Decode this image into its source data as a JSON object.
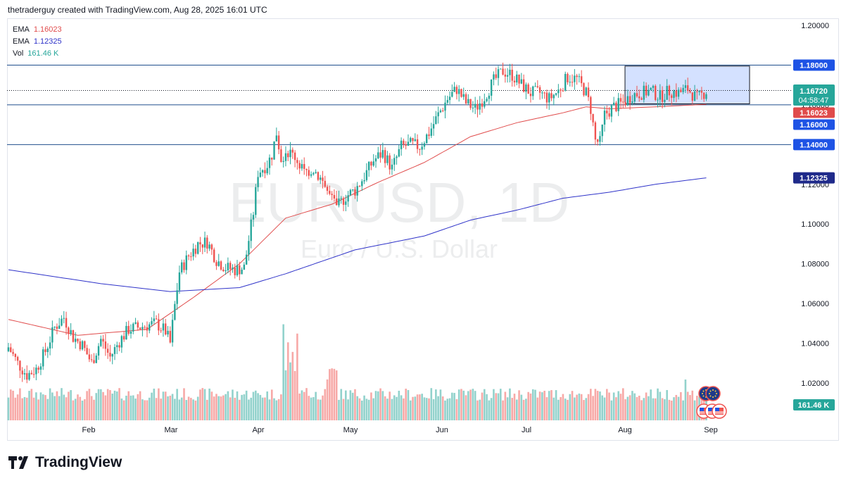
{
  "header": {
    "attribution": "thetraderguy created with TradingView.com, Aug 28, 2025 16:01 UTC"
  },
  "legend": {
    "ema1_label": "EMA",
    "ema1_value": "1.16023",
    "ema2_label": "EMA",
    "ema2_value": "1.12325",
    "vol_label": "Vol",
    "vol_value": "161.46 K"
  },
  "watermark": {
    "symbol": "EURUSD, 1D",
    "name": "Euro / U.S. Dollar"
  },
  "footer": {
    "brand": "TradingView"
  },
  "colors": {
    "up": "#26a69a",
    "down": "#ef5350",
    "ema_fast": "#e04b4b",
    "ema_slow": "#2f33c9",
    "level_line": "#1f4e8c",
    "box": "#c9d9ff",
    "price_tag": "#1e53e5"
  },
  "chart_data": {
    "type": "candlestick",
    "symbol": "EURUSD",
    "timeframe": "1D",
    "ylim": [
      1.0,
      1.205
    ],
    "y_ticks": [
      "1.20000",
      "1.18000",
      "1.16000",
      "1.14000",
      "1.12000",
      "1.10000",
      "1.08000",
      "1.06000",
      "1.04000",
      "1.02000"
    ],
    "x_ticks": [
      "Feb",
      "Mar",
      "Apr",
      "May",
      "Jun",
      "Jul",
      "Aug",
      "Sep"
    ],
    "horizontal_levels": [
      1.18,
      1.16,
      1.14
    ],
    "price_labels": [
      {
        "text": "1.18000",
        "kind": "level"
      },
      {
        "text": "1.16720",
        "kind": "last_price"
      },
      {
        "text": "04:58:47",
        "kind": "countdown"
      },
      {
        "text": "1.16023",
        "kind": "ema_fast"
      },
      {
        "text": "1.16000",
        "kind": "level"
      },
      {
        "text": "1.14000",
        "kind": "level"
      },
      {
        "text": "1.12325",
        "kind": "ema_slow"
      },
      {
        "text": "161.46 K",
        "kind": "volume"
      }
    ],
    "range_box": {
      "top": 1.1795,
      "bottom": 1.1605
    },
    "close_path": [
      [
        0,
        1.038
      ],
      [
        4,
        1.03
      ],
      [
        8,
        1.024
      ],
      [
        12,
        1.027
      ],
      [
        16,
        1.036
      ],
      [
        20,
        1.048
      ],
      [
        24,
        1.053
      ],
      [
        28,
        1.043
      ],
      [
        32,
        1.039
      ],
      [
        36,
        1.03
      ],
      [
        40,
        1.042
      ],
      [
        44,
        1.033
      ],
      [
        48,
        1.041
      ],
      [
        52,
        1.047
      ],
      [
        56,
        1.048
      ],
      [
        60,
        1.049
      ],
      [
        64,
        1.05
      ],
      [
        68,
        1.046
      ],
      [
        70,
        1.04
      ],
      [
        72,
        1.059
      ],
      [
        74,
        1.076
      ],
      [
        78,
        1.084
      ],
      [
        82,
        1.09
      ],
      [
        86,
        1.091
      ],
      [
        90,
        1.082
      ],
      [
        94,
        1.078
      ],
      [
        98,
        1.077
      ],
      [
        102,
        1.078
      ],
      [
        104,
        1.092
      ],
      [
        106,
        1.106
      ],
      [
        108,
        1.126
      ],
      [
        110,
        1.128
      ],
      [
        112,
        1.13
      ],
      [
        114,
        1.135
      ],
      [
        116,
        1.146
      ],
      [
        118,
        1.133
      ],
      [
        120,
        1.137
      ],
      [
        124,
        1.134
      ],
      [
        128,
        1.126
      ],
      [
        132,
        1.128
      ],
      [
        136,
        1.121
      ],
      [
        140,
        1.112
      ],
      [
        142,
        1.108
      ],
      [
        146,
        1.114
      ],
      [
        150,
        1.117
      ],
      [
        154,
        1.124
      ],
      [
        158,
        1.132
      ],
      [
        162,
        1.136
      ],
      [
        166,
        1.128
      ],
      [
        170,
        1.139
      ],
      [
        174,
        1.14
      ],
      [
        178,
        1.139
      ],
      [
        182,
        1.146
      ],
      [
        186,
        1.155
      ],
      [
        190,
        1.163
      ],
      [
        194,
        1.168
      ],
      [
        198,
        1.161
      ],
      [
        202,
        1.158
      ],
      [
        206,
        1.164
      ],
      [
        210,
        1.172
      ],
      [
        214,
        1.177
      ],
      [
        218,
        1.175
      ],
      [
        222,
        1.17
      ],
      [
        226,
        1.166
      ],
      [
        230,
        1.166
      ],
      [
        234,
        1.163
      ],
      [
        238,
        1.167
      ],
      [
        242,
        1.174
      ],
      [
        246,
        1.173
      ],
      [
        250,
        1.166
      ],
      [
        252,
        1.158
      ],
      [
        254,
        1.142
      ],
      [
        256,
        1.141
      ],
      [
        258,
        1.155
      ],
      [
        262,
        1.159
      ],
      [
        266,
        1.161
      ],
      [
        270,
        1.165
      ],
      [
        274,
        1.166
      ],
      [
        278,
        1.167
      ],
      [
        282,
        1.164
      ],
      [
        286,
        1.167
      ],
      [
        290,
        1.166
      ],
      [
        294,
        1.168
      ],
      [
        298,
        1.163
      ],
      [
        302,
        1.167
      ]
    ],
    "ema_fast_path": [
      [
        0,
        1.052
      ],
      [
        30,
        1.044
      ],
      [
        60,
        1.047
      ],
      [
        80,
        1.063
      ],
      [
        100,
        1.08
      ],
      [
        120,
        1.103
      ],
      [
        140,
        1.11
      ],
      [
        160,
        1.121
      ],
      [
        180,
        1.131
      ],
      [
        200,
        1.144
      ],
      [
        220,
        1.151
      ],
      [
        240,
        1.156
      ],
      [
        250,
        1.159
      ],
      [
        260,
        1.158
      ],
      [
        280,
        1.159
      ],
      [
        302,
        1.16023
      ]
    ],
    "ema_slow_path": [
      [
        0,
        1.077
      ],
      [
        40,
        1.07
      ],
      [
        70,
        1.066
      ],
      [
        100,
        1.068
      ],
      [
        120,
        1.075
      ],
      [
        150,
        1.087
      ],
      [
        180,
        1.094
      ],
      [
        200,
        1.102
      ],
      [
        220,
        1.107
      ],
      [
        240,
        1.113
      ],
      [
        260,
        1.116
      ],
      [
        280,
        1.12
      ],
      [
        302,
        1.12325
      ]
    ]
  }
}
